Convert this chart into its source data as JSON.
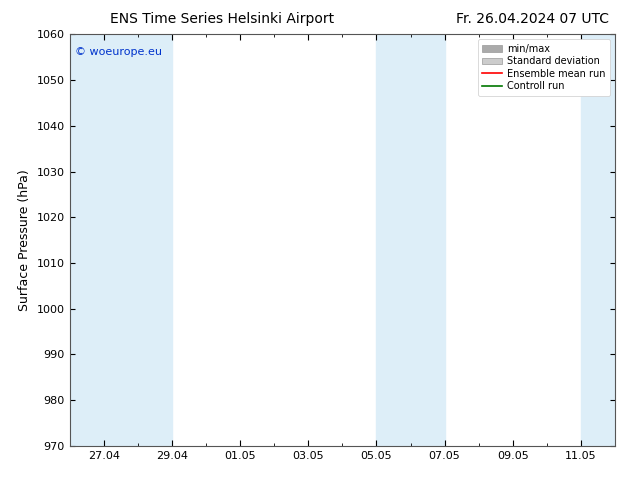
{
  "title_left": "ENS Time Series Helsinki Airport",
  "title_right": "Fr. 26.04.2024 07 UTC",
  "ylabel": "Surface Pressure (hPa)",
  "ylim": [
    970,
    1060
  ],
  "yticks": [
    970,
    980,
    990,
    1000,
    1010,
    1020,
    1030,
    1040,
    1050,
    1060
  ],
  "x_tick_labels": [
    "27.04",
    "29.04",
    "01.05",
    "03.05",
    "05.05",
    "07.05",
    "09.05",
    "11.05"
  ],
  "x_tick_positions": [
    1,
    3,
    5,
    7,
    9,
    11,
    13,
    15
  ],
  "x_minor_ticks": [
    0,
    1,
    2,
    3,
    4,
    5,
    6,
    7,
    8,
    9,
    10,
    11,
    12,
    13,
    14,
    15,
    16
  ],
  "x_start": 0,
  "x_end": 16,
  "shaded_bands": [
    {
      "x_start": 0,
      "x_end": 1,
      "color": "#ddeef8"
    },
    {
      "x_start": 1,
      "x_end": 3,
      "color": "#ddeef8"
    },
    {
      "x_start": 9,
      "x_end": 10,
      "color": "#ddeef8"
    },
    {
      "x_start": 10,
      "x_end": 11,
      "color": "#ddeef8"
    },
    {
      "x_start": 15,
      "x_end": 16,
      "color": "#ddeef8"
    }
  ],
  "watermark_text": "© woeurope.eu",
  "watermark_color": "#0033cc",
  "legend_entries": [
    {
      "label": "min/max",
      "color": "#aaaaaa",
      "style": "band"
    },
    {
      "label": "Standard deviation",
      "color": "#cccccc",
      "style": "band"
    },
    {
      "label": "Ensemble mean run",
      "color": "#ff0000",
      "style": "line"
    },
    {
      "label": "Controll run",
      "color": "#007700",
      "style": "line"
    }
  ],
  "background_color": "#ffffff",
  "title_fontsize": 10,
  "axis_label_fontsize": 9,
  "tick_fontsize": 8,
  "legend_fontsize": 7
}
